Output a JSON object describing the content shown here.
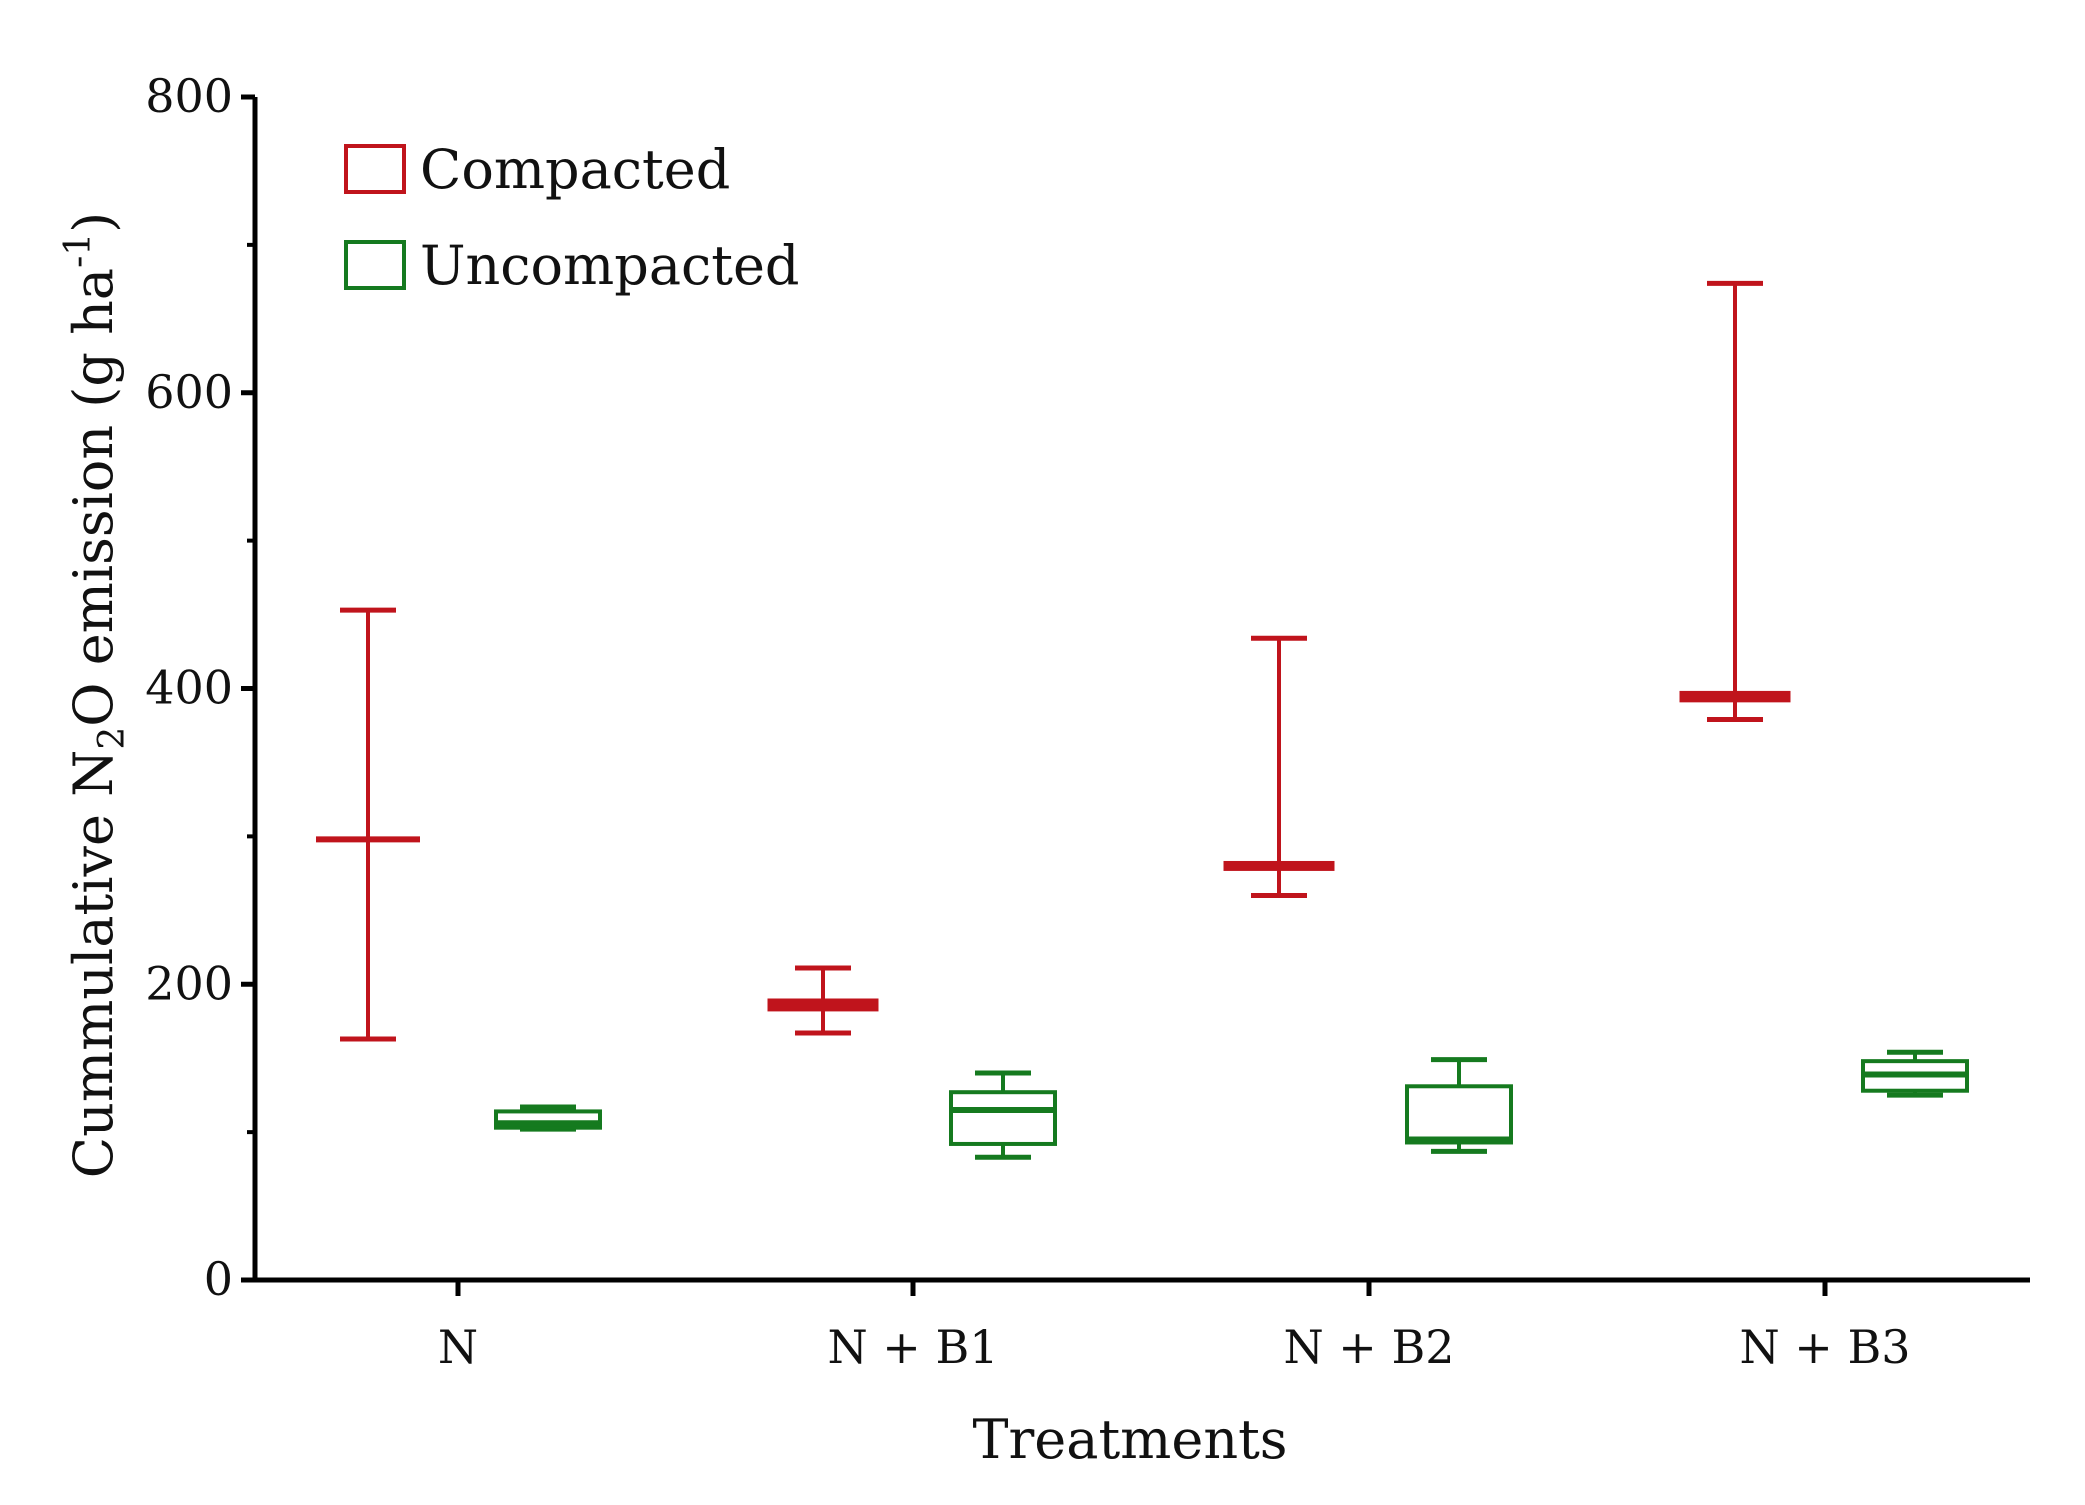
{
  "chart_data": {
    "type": "box",
    "title": "",
    "xlabel": "Treatments",
    "ylabel": {
      "prefix": "Cummulative N",
      "sub": "2",
      "middle": "O emission (g ha",
      "sup": "-1",
      "suffix": ")"
    },
    "ylim": [
      0,
      800
    ],
    "yticks": [
      0,
      200,
      400,
      600,
      800
    ],
    "y_minor_step": 100,
    "categories": [
      "N",
      "N + B1",
      "N + B2",
      "N + B3"
    ],
    "legend_position": "top-left",
    "series": [
      {
        "name": "Compacted",
        "color": "#c0141c",
        "boxes": [
          {
            "min": 163,
            "q1": 298,
            "median": 298,
            "q3": 298,
            "max": 453
          },
          {
            "min": 167,
            "q1": 184,
            "median": 186,
            "q3": 188,
            "max": 211
          },
          {
            "min": 260,
            "q1": 279,
            "median": 280,
            "q3": 281,
            "max": 434
          },
          {
            "min": 379,
            "q1": 393,
            "median": 394,
            "q3": 396,
            "max": 674
          }
        ]
      },
      {
        "name": "Uncompacted",
        "color": "#157a1f",
        "boxes": [
          {
            "min": 102,
            "q1": 103,
            "median": 106,
            "q3": 114,
            "max": 117
          },
          {
            "min": 83,
            "q1": 92,
            "median": 115,
            "q3": 127,
            "max": 140
          },
          {
            "min": 87,
            "q1": 93,
            "median": 95,
            "q3": 131,
            "max": 149
          },
          {
            "min": 125,
            "q1": 128,
            "median": 139,
            "q3": 148,
            "max": 154
          }
        ]
      }
    ]
  }
}
